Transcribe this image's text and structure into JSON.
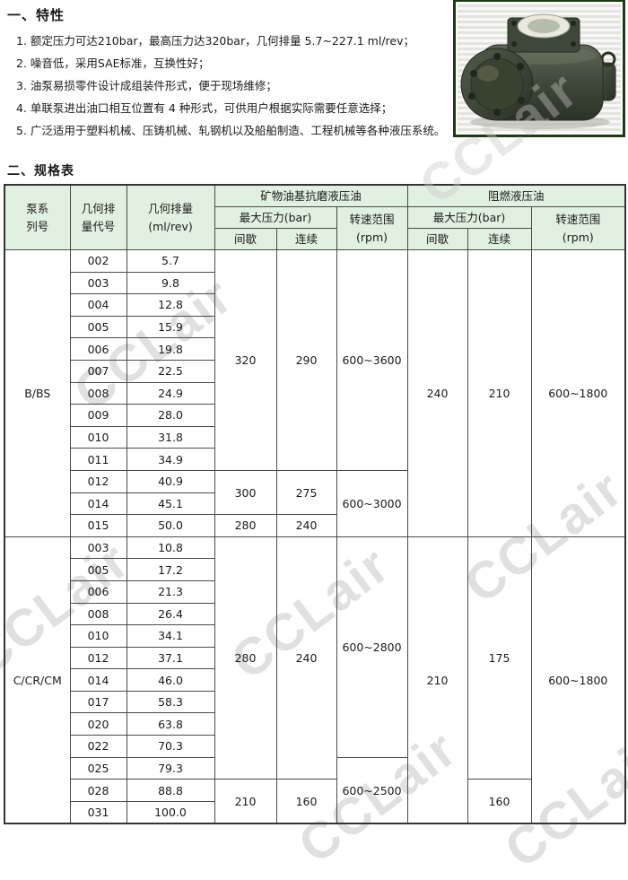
{
  "features": {
    "heading": "一、特性",
    "items": [
      "1. 额定压力可达210bar，最高压力达320bar，几何排量 5.7~227.1 ml/rev；",
      "2. 噪音低，采用SAE标准，互换性好；",
      "3. 油泵易损零件设计成组装件形式，便于现场维修；",
      "4. 单联泵进出油口相互位置有 4 种形式，可供用户根据实际需要任意选择；",
      "5. 广泛适用于塑料机械、压铸机械、轧钢机以及船舶制造、工程机械等各种液压系统。"
    ]
  },
  "spec": {
    "heading": "二、规格表",
    "header": {
      "series": "泵系\n列号",
      "code": "几何排\n量代号",
      "displacement": "几何排量\n(ml/rev)",
      "mineral_oil": "矿物油基抗磨液压油",
      "flame_oil": "阻燃液压油",
      "max_pressure": "最大压力(bar)",
      "speed_range": "转速范围\n(rpm)",
      "intermittent": "间歇",
      "continuous": "连续"
    },
    "sections": [
      {
        "series": "B/BS",
        "rows": [
          [
            "002",
            "5.7"
          ],
          [
            "003",
            "9.8"
          ],
          [
            "004",
            "12.8"
          ],
          [
            "005",
            "15.9"
          ],
          [
            "006",
            "19.8"
          ],
          [
            "007",
            "22.5"
          ],
          [
            "008",
            "24.9"
          ],
          [
            "009",
            "28.0"
          ],
          [
            "010",
            "31.8"
          ],
          [
            "011",
            "34.9"
          ],
          [
            "012",
            "40.9"
          ],
          [
            "014",
            "45.1"
          ],
          [
            "015",
            "50.0"
          ]
        ],
        "mineral": {
          "pressure_blocks": [
            {
              "rows": 10,
              "intermittent": "320",
              "continuous": "290"
            },
            {
              "rows": 2,
              "intermittent": "300",
              "continuous": "275"
            },
            {
              "rows": 1,
              "intermittent": "280",
              "continuous": "240"
            }
          ],
          "speed_blocks": [
            {
              "rows": 10,
              "value": "600~3600"
            },
            {
              "rows": 3,
              "value": "600~3000"
            }
          ]
        },
        "flame": {
          "intermittent_blocks": [
            {
              "rows": 13,
              "value": "240"
            }
          ],
          "continuous_blocks": [
            {
              "rows": 13,
              "value": "210"
            }
          ],
          "speed_blocks": [
            {
              "rows": 13,
              "value": "600~1800"
            }
          ]
        }
      },
      {
        "series": "C/CR/CM",
        "rows": [
          [
            "003",
            "10.8"
          ],
          [
            "005",
            "17.2"
          ],
          [
            "006",
            "21.3"
          ],
          [
            "008",
            "26.4"
          ],
          [
            "010",
            "34.1"
          ],
          [
            "012",
            "37.1"
          ],
          [
            "014",
            "46.0"
          ],
          [
            "017",
            "58.3"
          ],
          [
            "020",
            "63.8"
          ],
          [
            "022",
            "70.3"
          ],
          [
            "025",
            "79.3"
          ],
          [
            "028",
            "88.8"
          ],
          [
            "031",
            "100.0"
          ]
        ],
        "mineral": {
          "pressure_blocks": [
            {
              "rows": 11,
              "intermittent": "280",
              "continuous": "240"
            },
            {
              "rows": 2,
              "intermittent": "210",
              "continuous": "160"
            }
          ],
          "speed_blocks": [
            {
              "rows": 10,
              "value": "600~2800"
            },
            {
              "rows": 3,
              "value": "600~2500"
            }
          ]
        },
        "flame": {
          "intermittent_blocks": [
            {
              "rows": 13,
              "value": "210"
            }
          ],
          "continuous_blocks": [
            {
              "rows": 11,
              "value": "175"
            },
            {
              "rows": 2,
              "value": "160"
            }
          ],
          "speed_blocks": [
            {
              "rows": 13,
              "value": "600~1800"
            }
          ]
        }
      }
    ]
  },
  "watermark": {
    "text": "CCLair"
  },
  "colors": {
    "header_bg": "#e1f1e1",
    "table_border": "#4a4a4a",
    "photo_frame_green": "#1c3a14",
    "watermark_gray": "#c7c7c7"
  }
}
